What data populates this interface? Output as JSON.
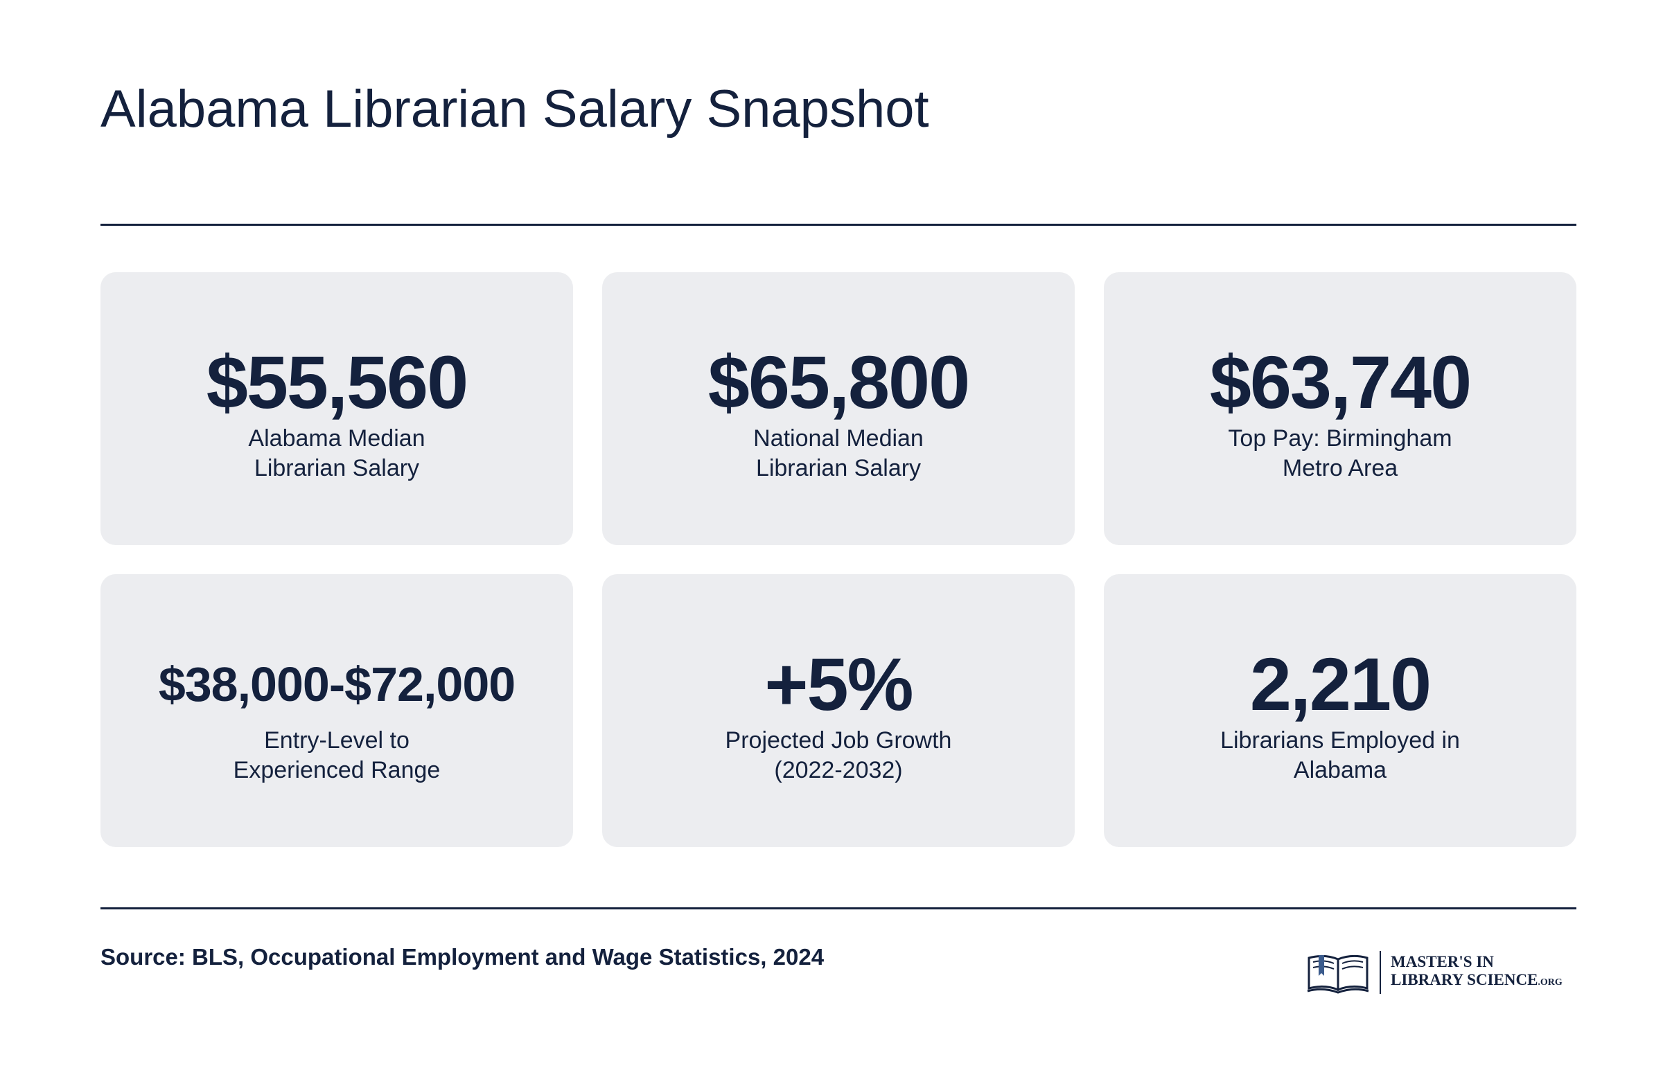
{
  "header": {
    "title": "Alabama Librarian Salary Snapshot"
  },
  "cards": [
    {
      "value": "$55,560",
      "label": "Alabama Median Librarian Salary"
    },
    {
      "value": "$65,800",
      "label": "National Median Librarian Salary"
    },
    {
      "value": "$63,740",
      "label": "Top Pay: Birmingham Metro Area"
    },
    {
      "value": "$38,000-$72,000",
      "label": "Entry-Level to Experienced Range"
    },
    {
      "value": "+5%",
      "label": "Projected Job Growth (2022-2032)"
    },
    {
      "value": "2,210",
      "label": "Librarians Employed in Alabama"
    }
  ],
  "footer": {
    "source": "Source: BLS, Occupational Employment and Wage Statistics, 2024",
    "logo": {
      "icon": "open-book-icon",
      "line1": "MASTER'S IN",
      "line2": "LIBRARY SCIENCE",
      "suffix": ".ORG"
    }
  },
  "colors": {
    "text": "#14213d",
    "card_background": "#ecedf0",
    "accent": "#3b5b8c"
  }
}
